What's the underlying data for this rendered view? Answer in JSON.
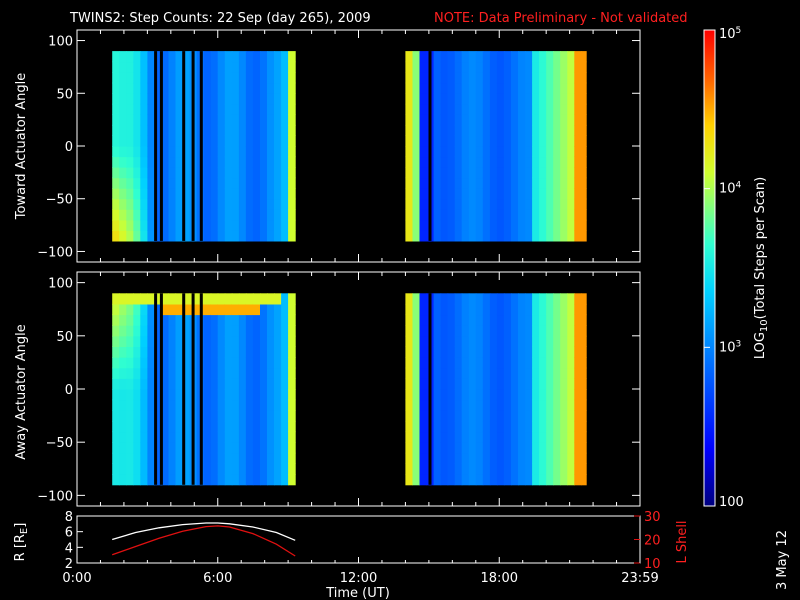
{
  "title": "TWINS2: Step Counts: 22 Sep (day 265), 2009",
  "note": "NOTE: Data Preliminary - Not validated",
  "date_stamp": "3 May 12",
  "colors": {
    "background": "#000000",
    "axes": "#ffffff",
    "note": "#ff2020",
    "radius_line": "#ffffff",
    "lshell_line": "#e01010"
  },
  "chart_data": [
    {
      "type": "heatmap",
      "panel": "toward",
      "ylabel": "Toward Actuator Angle",
      "ylim": [
        -110,
        110
      ],
      "yticks": [
        100,
        50,
        0,
        -50,
        -100
      ],
      "data_y_range": [
        -90,
        90
      ],
      "data_time_ranges_h": [
        [
          1.5,
          9.3
        ],
        [
          14.0,
          21.7
        ]
      ],
      "gap_lines_h": [
        3.35,
        3.6,
        4.55,
        4.95,
        5.3,
        15.05
      ],
      "colormap": "rainbow",
      "color_log_range": [
        100,
        100000
      ]
    },
    {
      "type": "heatmap",
      "panel": "away",
      "ylabel": "Away Actuator Angle",
      "ylim": [
        -110,
        110
      ],
      "yticks": [
        100,
        50,
        0,
        -50,
        -100
      ],
      "data_y_range": [
        -90,
        90
      ],
      "data_time_ranges_h": [
        [
          1.5,
          9.3
        ],
        [
          14.0,
          21.7
        ]
      ],
      "gap_lines_h": [
        3.35,
        3.6,
        4.55,
        4.95,
        5.3,
        15.05
      ],
      "colormap": "rainbow",
      "color_log_range": [
        100,
        100000
      ]
    },
    {
      "type": "line",
      "panel": "orbit",
      "xlabel": "Time (UT)",
      "xlim": [
        0,
        24
      ],
      "xticks": [
        "0:00",
        "6:00",
        "12:00",
        "18:00",
        "23:59"
      ],
      "ylabel": "R [R",
      "ylabel_sub": "E",
      "ylabel_end": "]",
      "ylim": [
        2,
        8
      ],
      "yticks": [
        2,
        4,
        6,
        8
      ],
      "ylabel_right": "L Shell",
      "ylim_right": [
        10,
        30
      ],
      "yticks_right": [
        10,
        20,
        30
      ],
      "series": [
        {
          "x": [
            1.5,
            2.5,
            3.5,
            4.5,
            5.5,
            6.0,
            6.5,
            7.5,
            8.5,
            9.3
          ],
          "values": [
            5.0,
            5.9,
            6.5,
            6.9,
            7.1,
            7.1,
            7.0,
            6.6,
            5.9,
            4.9
          ]
        },
        {
          "x": [
            1.5,
            2.5,
            3.5,
            4.5,
            5.5,
            6.0,
            6.5,
            7.5,
            8.5,
            9.3
          ],
          "values": [
            13.5,
            17.0,
            20.5,
            23.5,
            25.5,
            25.8,
            25.3,
            22.5,
            18.0,
            13.0
          ]
        }
      ]
    }
  ],
  "colorbar": {
    "label": "LOG",
    "label_sub": "10",
    "label_rest": "(Total Steps per Scan)",
    "ticks": [
      {
        "base": "10",
        "exp": "5",
        "value": 100000
      },
      {
        "base": "10",
        "exp": "4",
        "value": 10000
      },
      {
        "base": "10",
        "exp": "3",
        "value": 1000
      },
      {
        "base": "100",
        "exp": "",
        "value": 100
      }
    ]
  }
}
